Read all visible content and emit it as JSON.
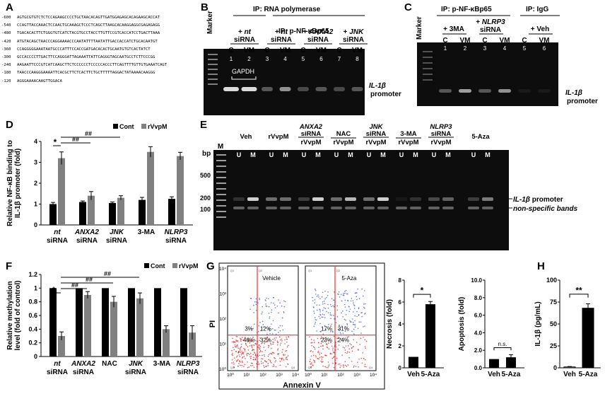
{
  "panels": {
    "A": "A",
    "B": "B",
    "C": "C",
    "D": "D",
    "E": "E",
    "F": "F",
    "G": "G",
    "H": "H"
  },
  "panelA": {
    "rows": [
      {
        "num": "-600",
        "seq": "AGTGCGTGTCTCTCCAGAAGCCCCTGCTAACACAGTTGATGGAGAGCACAGAAGCACCAT"
      },
      {
        "num": "-540",
        "seq": "CCAGTTACCAAACTCCAACTGCAAAGCTCCCTCAGCTTAAGCACAAGGAGGCGAGAGAGG"
      },
      {
        "num": "-480",
        "seq": "TGACACACTTCTGGGTGTCATCTACGTGCCTACCTTGTTCCGTCACCATCCTGACTTAAA"
      },
      {
        "num": "-420",
        "seq": "ATGTACAGCTAACCCAGGAAAACCCAATATTTTAATATTGACCACCATCTGCACAATGT"
      },
      {
        "num": "-360",
        "seq": "CCAGGGGGAAATAATGCCCATTTCCACCGATGACACACTGCAATGTGTCACTATCT"
      },
      {
        "num": "-300",
        "seq": "GCCACCCCTTGACTTCCAGGGATTAGAAATTATTCAGGGTAGCAATGCCTCTTCCCGG"
      },
      {
        "num": "-240",
        "seq": "AAGAATTCCCGTCATCAAGCTTCTCCCCCCTCCCCCACCCTTCAGTTTTGTTGTGAAATCAGT"
      },
      {
        "num": "-180",
        "seq": "TAACCCAAGGGAAAATTCACGCTTCTCACTTCTGCTTTTTAGGACTATAAAACAAGGG"
      },
      {
        "num": "-120",
        "seq": "AGGGAAAACAAGTTGGACA"
      }
    ]
  },
  "panelB": {
    "marker": "Marker",
    "ip1": "IP: RNA polymerase",
    "ip2": "IP: p-NF-κBp65",
    "groups": [
      {
        "gene": "nt",
        "word": "siRNA",
        "prefix": "+"
      },
      {
        "gene": "nt",
        "word": "siRNA",
        "prefix": "+"
      },
      {
        "gene": "ANXA2",
        "word": "siRNA",
        "prefix": "+"
      },
      {
        "gene": "JNK",
        "word": "siRNA",
        "prefix": "+"
      }
    ],
    "lanes": [
      "C",
      "VM",
      "C",
      "VM",
      "C",
      "VM",
      "C",
      "VM"
    ],
    "lane_numbers": [
      "1",
      "2",
      "3",
      "4",
      "5",
      "6",
      "7",
      "8"
    ],
    "gapdh": "GAPDH",
    "side_label_gene": "IL-1β",
    "side_label_rest": "promoter"
  },
  "panelC": {
    "marker": "Marker",
    "ip1": "IP: p-NF-κBp65",
    "ip2": "IP: IgG",
    "g1": "+ 3MA",
    "g2_gene": "NLRP3",
    "g2_prefix": "+",
    "g2_word": "siRNA",
    "g3": "+ Veh",
    "lanes": [
      "C",
      "VM",
      "C",
      "VM",
      "C",
      "VM"
    ],
    "lane_numbers": [
      "1",
      "2",
      "3",
      "4",
      "5",
      "6"
    ],
    "side_label_gene": "IL-1β",
    "side_label_rest": "promoter"
  },
  "panelD": {
    "chart_data": {
      "type": "bar",
      "categories": [
        "nt siRNA",
        "ANXA2 siRNA",
        "JNK siRNA",
        "3-MA",
        "NLRP3 siRNA"
      ],
      "series": [
        {
          "name": "Cont",
          "values": [
            1.0,
            1.1,
            1.05,
            1.2,
            1.25
          ],
          "errors": [
            0.08,
            0.05,
            0.05,
            0.12,
            0.1
          ],
          "color": "#000000"
        },
        {
          "name": "rVvpM",
          "values": [
            3.2,
            1.4,
            1.3,
            3.5,
            3.3
          ],
          "errors": [
            0.3,
            0.2,
            0.1,
            0.25,
            0.18
          ],
          "color": "#808080"
        }
      ],
      "ylabel": "Relative NF-κB binding to IL-1β promoter (fold)",
      "ylim": [
        0,
        4
      ],
      "yticks": [
        "0",
        "1",
        "2",
        "3",
        "4"
      ],
      "annotations": [
        "*",
        "##",
        "##"
      ]
    },
    "cat_top": [
      "nt",
      "ANXA2",
      "JNK",
      "3-MA",
      "NLRP3"
    ],
    "cat_bottom": [
      "siRNA",
      "siRNA",
      "siRNA",
      "",
      "siRNA"
    ]
  },
  "panelE": {
    "bp": "bp",
    "ladder": [
      "500",
      "200",
      "100"
    ],
    "M": "M",
    "groups": [
      {
        "top": "",
        "mid": "Veh"
      },
      {
        "top": "",
        "mid": "rVvpM"
      },
      {
        "top": "ANXA2",
        "top2": "siRNA",
        "mid": "rVvpM"
      },
      {
        "top": "",
        "mid": "NAC",
        "sub": "rVvpM"
      },
      {
        "top": "JNK",
        "top2": "siRNA",
        "mid": "rVvpM"
      },
      {
        "top": "",
        "mid": "3-MA",
        "sub": "rVvpM"
      },
      {
        "top": "NLRP3",
        "top2": "siRNA",
        "mid": "rVvpM"
      },
      {
        "top": "",
        "mid": "5-Aza"
      }
    ],
    "lanes": [
      "U",
      "M"
    ],
    "label1_gene": "IL-1β",
    "label1_rest": "promoter",
    "label2": "non-specific bands"
  },
  "panelF": {
    "chart_data": {
      "type": "bar",
      "categories": [
        "nt siRNA",
        "ANXA2 siRNA",
        "NAC",
        "JNK siRNA",
        "3-MA",
        "NLRP3 siRNA"
      ],
      "series": [
        {
          "name": "Cont",
          "values": [
            1,
            1,
            1,
            1,
            1,
            1
          ],
          "errors": [
            0,
            0,
            0,
            0,
            0,
            0
          ],
          "color": "#000000"
        },
        {
          "name": "rVvpM",
          "values": [
            0.3,
            0.9,
            0.8,
            0.85,
            0.4,
            0.35
          ],
          "errors": [
            0.06,
            0.05,
            0.08,
            0.08,
            0.05,
            0.1
          ],
          "color": "#808080"
        }
      ],
      "ylabel": "Relative methylation level (fold of control)",
      "ylim": [
        0,
        1.2
      ],
      "yticks": [
        "0",
        "0.2",
        "0.4",
        "0.6",
        "0.8",
        "1",
        "1.2"
      ],
      "annotations": [
        "*",
        "##",
        "##",
        "##"
      ]
    },
    "cat_top": [
      "nt",
      "ANXA2",
      "NAC",
      "JNK",
      "3-MA",
      "NLRP3"
    ],
    "cat_bottom": [
      "siRNA",
      "siRNA",
      "",
      "siRNA",
      "",
      "siRNA"
    ]
  },
  "panelG": {
    "ylabel": "PI",
    "xlabel": "Annexin V",
    "plots": [
      {
        "title": "Vehicle",
        "q": [
          "3%",
          "12%",
          "46%",
          "32%"
        ]
      },
      {
        "title": "5-Aza",
        "q": [
          "17%",
          "31%",
          "23%",
          "24%"
        ]
      }
    ],
    "yticks": [
      "10⁴",
      "10³",
      "10²",
      "10¹",
      "10⁰"
    ],
    "xticks": [
      "10⁰",
      "10¹",
      "10²",
      "10³",
      "10⁴"
    ],
    "quads": [
      "Q1",
      "Q2",
      "Q3",
      "Q4"
    ],
    "necrosis": {
      "chart_data": {
        "type": "bar",
        "categories": [
          "Veh",
          "5-Aza"
        ],
        "values": [
          1,
          5.8
        ],
        "errors": [
          0,
          0.25
        ],
        "ylabel": "Necrosis (fold)",
        "ylim": [
          0,
          8
        ],
        "yticks": [
          "0",
          "2",
          "4",
          "6",
          "8"
        ],
        "annotation": "*"
      }
    },
    "apoptosis": {
      "chart_data": {
        "type": "bar",
        "categories": [
          "Veh",
          "5-Aza"
        ],
        "values": [
          1,
          1.2
        ],
        "errors": [
          0,
          0.3
        ],
        "ylabel": "Apoptosis (fold)",
        "ylim": [
          0,
          10
        ],
        "yticks": [
          "0.0",
          "2.0",
          "4.0",
          "6.0",
          "8.0",
          "10.0"
        ],
        "annotation": "n.s."
      }
    }
  },
  "panelH": {
    "chart_data": {
      "type": "bar",
      "categories": [
        "Veh",
        "5-Aza"
      ],
      "values": [
        1,
        68
      ],
      "errors": [
        0.5,
        5
      ],
      "ylabel": "IL-1β (pg/mL)",
      "ylim": [
        0,
        100
      ],
      "yticks": [
        "0",
        "25",
        "50",
        "75",
        "100"
      ],
      "annotation": "**"
    }
  }
}
